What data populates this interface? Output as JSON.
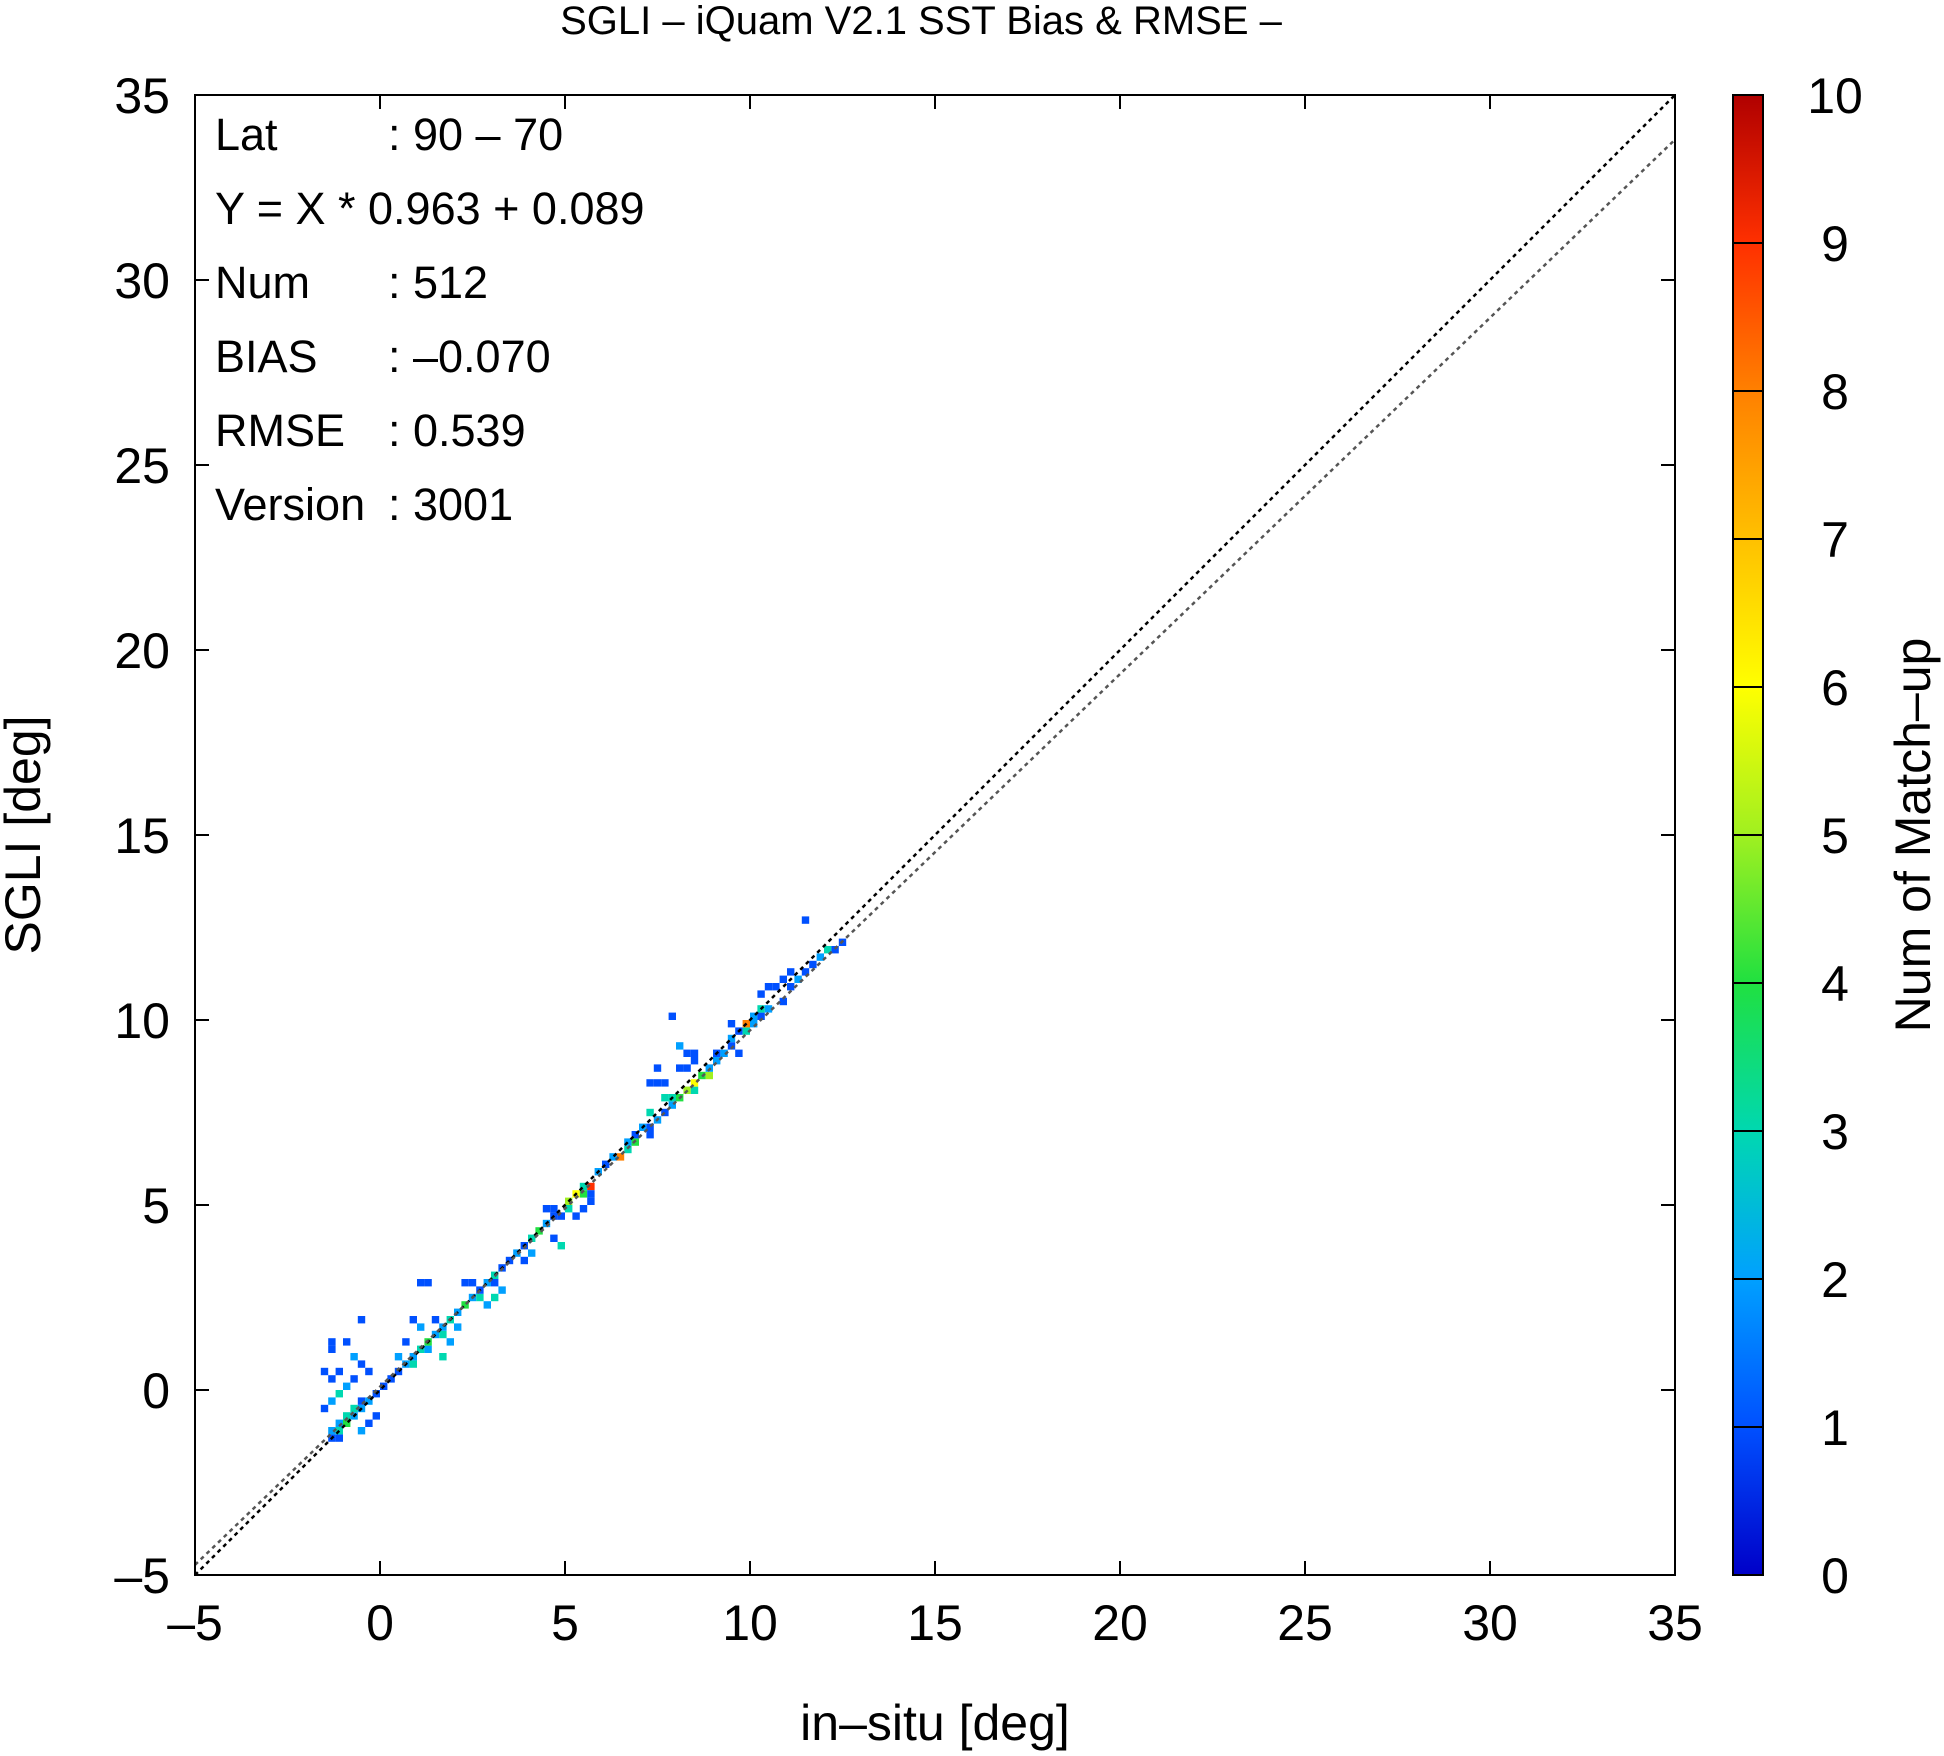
{
  "chart_data": {
    "type": "heatmap",
    "title": "SGLI – iQuam V2.1 SST Bias & RMSE  –",
    "xlabel": "in–situ [deg]",
    "ylabel": "SGLI [deg]",
    "xlim": [
      -5,
      35
    ],
    "ylim": [
      -5,
      35
    ],
    "x_ticks": [
      "–5",
      "0",
      "5",
      "10",
      "15",
      "20",
      "25",
      "30",
      "35"
    ],
    "y_ticks": [
      "–5",
      "0",
      "5",
      "10",
      "15",
      "20",
      "25",
      "30",
      "35"
    ],
    "grid": false,
    "stats": [
      {
        "label": "Lat",
        "value": ": 90 – 70"
      },
      {
        "label": "Y = X * 0.963 + 0.089",
        "value": ""
      },
      {
        "label": "Num",
        "value": ": 512"
      },
      {
        "label": "BIAS",
        "value": ": –0.070"
      },
      {
        "label": "RMSE",
        "value": ": 0.539"
      },
      {
        "label": "Version",
        "value": ": 3001"
      }
    ],
    "reference_lines": [
      {
        "kind": "one_to_one",
        "slope": 1,
        "intercept": 0,
        "color": "#000000",
        "style": "dotted"
      },
      {
        "kind": "regression",
        "slope": 0.963,
        "intercept": 0.089,
        "color": "#555555",
        "style": "dotted"
      }
    ],
    "colorbar": {
      "label": "Num of Match–up",
      "range": [
        0,
        10
      ],
      "ticks": [
        "0",
        "1",
        "2",
        "3",
        "4",
        "5",
        "6",
        "7",
        "8",
        "9",
        "10"
      ],
      "colors": [
        "#0000c8",
        "#0050ff",
        "#00a0ff",
        "#00d8b0",
        "#20e040",
        "#a0f020",
        "#ffff00",
        "#ffc000",
        "#ff8000",
        "#ff3000",
        "#b00000"
      ]
    },
    "bin_size": 0.2,
    "cells": [
      {
        "x": -1.4,
        "y": -1.4,
        "count": 1
      },
      {
        "x": -1.2,
        "y": -1.4,
        "count": 1
      },
      {
        "x": -1.4,
        "y": -1.2,
        "count": 2
      },
      {
        "x": -1.2,
        "y": -1.2,
        "count": 3
      },
      {
        "x": -1.2,
        "y": -1.0,
        "count": 2
      },
      {
        "x": -1.0,
        "y": -1.0,
        "count": 4
      },
      {
        "x": -1.0,
        "y": -0.8,
        "count": 3
      },
      {
        "x": -0.8,
        "y": -0.8,
        "count": 2
      },
      {
        "x": -0.8,
        "y": -0.6,
        "count": 3
      },
      {
        "x": -0.6,
        "y": -0.6,
        "count": 2
      },
      {
        "x": -0.6,
        "y": -0.4,
        "count": 1
      },
      {
        "x": -0.4,
        "y": -0.4,
        "count": 2
      },
      {
        "x": -0.2,
        "y": -0.2,
        "count": 1
      },
      {
        "x": 0.0,
        "y": 0.0,
        "count": 1
      },
      {
        "x": 0.2,
        "y": 0.2,
        "count": 1
      },
      {
        "x": -1.6,
        "y": -0.6,
        "count": 1
      },
      {
        "x": -1.4,
        "y": -0.4,
        "count": 2
      },
      {
        "x": -1.2,
        "y": -0.2,
        "count": 3
      },
      {
        "x": -1.0,
        "y": 0.0,
        "count": 2
      },
      {
        "x": -0.8,
        "y": 0.2,
        "count": 1
      },
      {
        "x": -1.4,
        "y": 0.2,
        "count": 1
      },
      {
        "x": -1.2,
        "y": 0.4,
        "count": 1
      },
      {
        "x": -1.4,
        "y": 1.2,
        "count": 1
      },
      {
        "x": -1.4,
        "y": 1.0,
        "count": 1
      },
      {
        "x": -1.0,
        "y": 1.2,
        "count": 1
      },
      {
        "x": -0.8,
        "y": 0.8,
        "count": 2
      },
      {
        "x": -0.6,
        "y": 1.8,
        "count": 1
      },
      {
        "x": -0.6,
        "y": 0.6,
        "count": 1
      },
      {
        "x": -0.4,
        "y": 0.4,
        "count": 1
      },
      {
        "x": -0.6,
        "y": -1.2,
        "count": 2
      },
      {
        "x": -0.4,
        "y": -1.0,
        "count": 1
      },
      {
        "x": -0.2,
        "y": -0.8,
        "count": 1
      },
      {
        "x": -1.6,
        "y": 0.4,
        "count": 1
      },
      {
        "x": 0.4,
        "y": 0.4,
        "count": 1
      },
      {
        "x": 0.6,
        "y": 0.6,
        "count": 2
      },
      {
        "x": 0.8,
        "y": 0.6,
        "count": 3
      },
      {
        "x": 0.8,
        "y": 0.8,
        "count": 2
      },
      {
        "x": 1.0,
        "y": 1.0,
        "count": 3
      },
      {
        "x": 1.2,
        "y": 1.0,
        "count": 2
      },
      {
        "x": 1.2,
        "y": 1.2,
        "count": 4
      },
      {
        "x": 1.4,
        "y": 1.4,
        "count": 2
      },
      {
        "x": 1.6,
        "y": 1.4,
        "count": 3
      },
      {
        "x": 1.6,
        "y": 1.6,
        "count": 2
      },
      {
        "x": 1.8,
        "y": 1.8,
        "count": 3
      },
      {
        "x": 2.0,
        "y": 2.0,
        "count": 2
      },
      {
        "x": 1.0,
        "y": 2.8,
        "count": 1
      },
      {
        "x": 1.2,
        "y": 2.8,
        "count": 1
      },
      {
        "x": 0.8,
        "y": 1.8,
        "count": 1
      },
      {
        "x": 1.0,
        "y": 1.6,
        "count": 2
      },
      {
        "x": 0.6,
        "y": 1.2,
        "count": 1
      },
      {
        "x": 1.6,
        "y": 0.8,
        "count": 3
      },
      {
        "x": 1.8,
        "y": 1.2,
        "count": 2
      },
      {
        "x": 1.4,
        "y": 1.8,
        "count": 1
      },
      {
        "x": 0.4,
        "y": 0.8,
        "count": 2
      },
      {
        "x": 2.2,
        "y": 2.2,
        "count": 4
      },
      {
        "x": 2.4,
        "y": 2.4,
        "count": 2
      },
      {
        "x": 2.6,
        "y": 2.4,
        "count": 3
      },
      {
        "x": 2.6,
        "y": 2.6,
        "count": 1
      },
      {
        "x": 2.8,
        "y": 2.8,
        "count": 2
      },
      {
        "x": 3.0,
        "y": 2.8,
        "count": 1
      },
      {
        "x": 3.0,
        "y": 3.0,
        "count": 3
      },
      {
        "x": 3.2,
        "y": 3.2,
        "count": 1
      },
      {
        "x": 3.4,
        "y": 3.4,
        "count": 1
      },
      {
        "x": 2.4,
        "y": 2.8,
        "count": 1
      },
      {
        "x": 2.2,
        "y": 2.8,
        "count": 1
      },
      {
        "x": 2.8,
        "y": 2.2,
        "count": 2
      },
      {
        "x": 3.0,
        "y": 2.4,
        "count": 3
      },
      {
        "x": 3.2,
        "y": 2.6,
        "count": 2
      },
      {
        "x": 2.0,
        "y": 1.6,
        "count": 2
      },
      {
        "x": 3.6,
        "y": 3.6,
        "count": 2
      },
      {
        "x": 3.8,
        "y": 3.8,
        "count": 1
      },
      {
        "x": 4.0,
        "y": 4.0,
        "count": 3
      },
      {
        "x": 4.2,
        "y": 4.2,
        "count": 4
      },
      {
        "x": 4.4,
        "y": 4.4,
        "count": 2
      },
      {
        "x": 4.6,
        "y": 4.6,
        "count": 1
      },
      {
        "x": 4.4,
        "y": 4.8,
        "count": 1
      },
      {
        "x": 4.6,
        "y": 4.8,
        "count": 1
      },
      {
        "x": 4.0,
        "y": 3.6,
        "count": 2
      },
      {
        "x": 3.8,
        "y": 3.4,
        "count": 1
      },
      {
        "x": 4.8,
        "y": 3.8,
        "count": 3
      },
      {
        "x": 4.6,
        "y": 4.0,
        "count": 1
      },
      {
        "x": 5.0,
        "y": 5.0,
        "count": 5
      },
      {
        "x": 5.2,
        "y": 5.2,
        "count": 6
      },
      {
        "x": 5.4,
        "y": 5.2,
        "count": 4
      },
      {
        "x": 5.4,
        "y": 5.4,
        "count": 3
      },
      {
        "x": 5.6,
        "y": 5.4,
        "count": 9
      },
      {
        "x": 5.6,
        "y": 5.2,
        "count": 1
      },
      {
        "x": 5.2,
        "y": 4.6,
        "count": 1
      },
      {
        "x": 5.4,
        "y": 4.8,
        "count": 1
      },
      {
        "x": 5.6,
        "y": 5.0,
        "count": 1
      },
      {
        "x": 4.8,
        "y": 4.6,
        "count": 1
      },
      {
        "x": 5.0,
        "y": 4.8,
        "count": 3
      },
      {
        "x": 5.8,
        "y": 5.8,
        "count": 2
      },
      {
        "x": 6.0,
        "y": 6.0,
        "count": 1
      },
      {
        "x": 6.2,
        "y": 6.2,
        "count": 2
      },
      {
        "x": 6.4,
        "y": 6.2,
        "count": 8
      },
      {
        "x": 6.6,
        "y": 6.4,
        "count": 3
      },
      {
        "x": 6.6,
        "y": 6.6,
        "count": 2
      },
      {
        "x": 6.8,
        "y": 6.6,
        "count": 4
      },
      {
        "x": 6.8,
        "y": 6.8,
        "count": 1
      },
      {
        "x": 7.0,
        "y": 7.0,
        "count": 2
      },
      {
        "x": 7.2,
        "y": 7.0,
        "count": 1
      },
      {
        "x": 7.2,
        "y": 6.8,
        "count": 1
      },
      {
        "x": 7.4,
        "y": 7.2,
        "count": 2
      },
      {
        "x": 7.6,
        "y": 7.4,
        "count": 1
      },
      {
        "x": 7.8,
        "y": 7.6,
        "count": 2
      },
      {
        "x": 7.8,
        "y": 7.8,
        "count": 3
      },
      {
        "x": 8.0,
        "y": 7.8,
        "count": 4
      },
      {
        "x": 8.2,
        "y": 8.0,
        "count": 5
      },
      {
        "x": 8.4,
        "y": 8.0,
        "count": 3
      },
      {
        "x": 8.4,
        "y": 8.2,
        "count": 6
      },
      {
        "x": 8.6,
        "y": 8.4,
        "count": 4
      },
      {
        "x": 8.8,
        "y": 8.4,
        "count": 5
      },
      {
        "x": 8.8,
        "y": 8.6,
        "count": 2
      },
      {
        "x": 9.0,
        "y": 8.8,
        "count": 2
      },
      {
        "x": 7.6,
        "y": 8.2,
        "count": 1
      },
      {
        "x": 7.4,
        "y": 8.2,
        "count": 1
      },
      {
        "x": 7.2,
        "y": 8.2,
        "count": 1
      },
      {
        "x": 7.4,
        "y": 8.6,
        "count": 1
      },
      {
        "x": 8.0,
        "y": 8.6,
        "count": 1
      },
      {
        "x": 8.2,
        "y": 8.6,
        "count": 1
      },
      {
        "x": 8.4,
        "y": 8.8,
        "count": 1
      },
      {
        "x": 8.2,
        "y": 9.0,
        "count": 1
      },
      {
        "x": 8.0,
        "y": 9.2,
        "count": 2
      },
      {
        "x": 8.4,
        "y": 9.0,
        "count": 1
      },
      {
        "x": 7.8,
        "y": 10.0,
        "count": 1
      },
      {
        "x": 7.6,
        "y": 7.8,
        "count": 3
      },
      {
        "x": 7.2,
        "y": 7.4,
        "count": 3
      },
      {
        "x": 9.0,
        "y": 9.0,
        "count": 1
      },
      {
        "x": 9.2,
        "y": 9.0,
        "count": 2
      },
      {
        "x": 9.4,
        "y": 9.2,
        "count": 1
      },
      {
        "x": 9.4,
        "y": 9.4,
        "count": 2
      },
      {
        "x": 9.6,
        "y": 9.6,
        "count": 1
      },
      {
        "x": 9.8,
        "y": 9.6,
        "count": 3
      },
      {
        "x": 9.8,
        "y": 9.8,
        "count": 8
      },
      {
        "x": 10.0,
        "y": 9.8,
        "count": 2
      },
      {
        "x": 10.0,
        "y": 10.0,
        "count": 2
      },
      {
        "x": 10.2,
        "y": 10.0,
        "count": 1
      },
      {
        "x": 10.2,
        "y": 10.2,
        "count": 3
      },
      {
        "x": 10.4,
        "y": 10.2,
        "count": 2
      },
      {
        "x": 9.4,
        "y": 9.8,
        "count": 1
      },
      {
        "x": 9.6,
        "y": 9.0,
        "count": 1
      },
      {
        "x": 10.4,
        "y": 10.8,
        "count": 1
      },
      {
        "x": 10.6,
        "y": 10.8,
        "count": 1
      },
      {
        "x": 10.2,
        "y": 10.6,
        "count": 1
      },
      {
        "x": 10.8,
        "y": 10.4,
        "count": 1
      },
      {
        "x": 11.0,
        "y": 10.8,
        "count": 1
      },
      {
        "x": 11.2,
        "y": 11.0,
        "count": 2
      },
      {
        "x": 11.4,
        "y": 11.2,
        "count": 1
      },
      {
        "x": 11.6,
        "y": 11.4,
        "count": 1
      },
      {
        "x": 11.8,
        "y": 11.6,
        "count": 2
      },
      {
        "x": 12.0,
        "y": 11.8,
        "count": 3
      },
      {
        "x": 12.2,
        "y": 11.8,
        "count": 1
      },
      {
        "x": 12.4,
        "y": 12.0,
        "count": 1
      },
      {
        "x": 11.4,
        "y": 12.6,
        "count": 1
      },
      {
        "x": 11.0,
        "y": 11.2,
        "count": 1
      },
      {
        "x": 10.8,
        "y": 11.0,
        "count": 1
      }
    ]
  }
}
